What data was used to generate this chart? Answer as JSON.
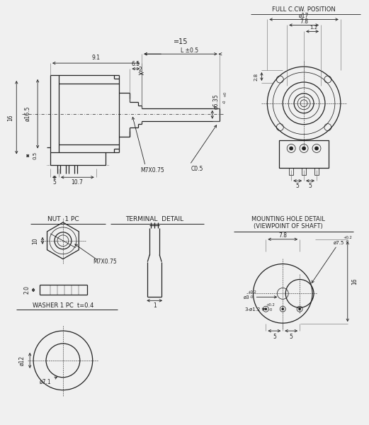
{
  "bg_color": "#f0f0f0",
  "line_color": "#222222",
  "annotations": {
    "full_ccw": "FULL C.CW. POSITION",
    "nut_1pc": "NUT  1 PC",
    "terminal_detail": "TERMINAL  DETAIL",
    "mounting_hole": "MOUNTING HOLE DETAIL",
    "viewpoint": "(VIEWPOINT OF SHAFT)",
    "washer": "WASHER 1 PC  t=0.4",
    "m7x075_thread": "M7X0.75",
    "m7x075_nut": "M7X0.75",
    "c05": "C0.5",
    "l15": "=15",
    "l_pm": "L ±0.5"
  }
}
